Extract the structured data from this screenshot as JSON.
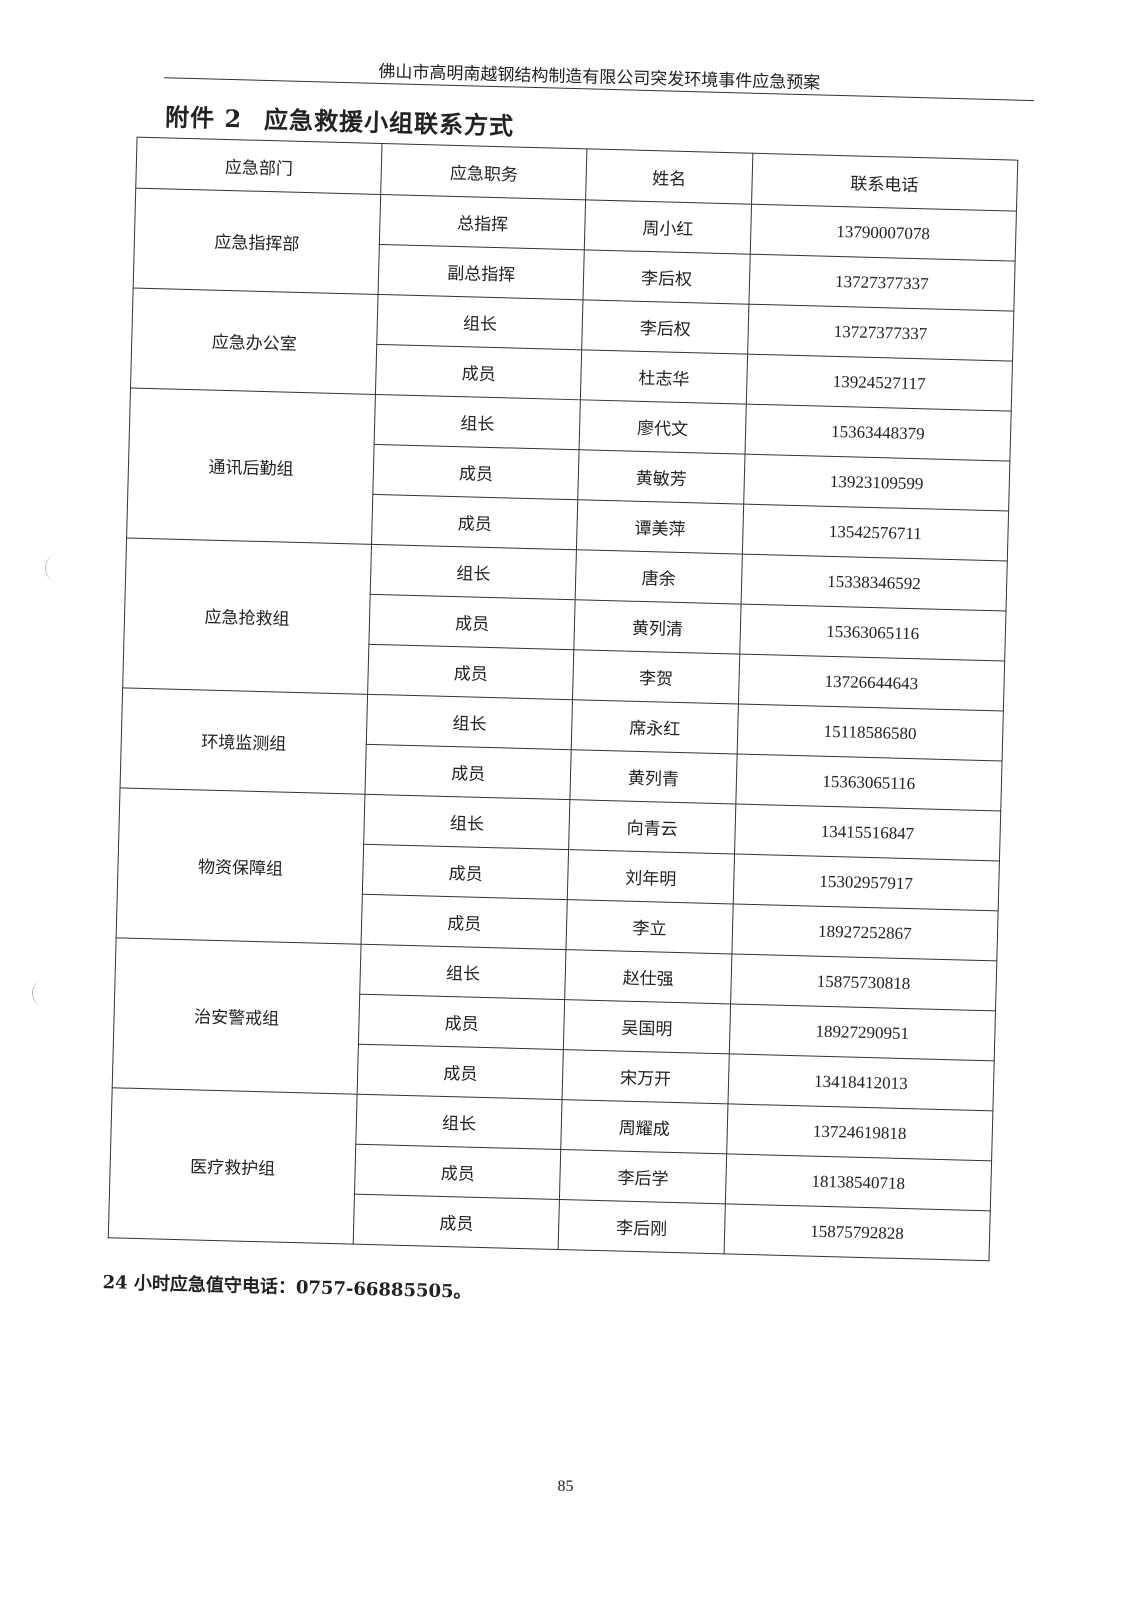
{
  "header": {
    "text": "佛山市高明南越钢结构制造有限公司突发环境事件应急预案"
  },
  "title": {
    "number": "附件 2",
    "text": "应急救援小组联系方式"
  },
  "table": {
    "columns": [
      "应急部门",
      "应急职务",
      "姓名",
      "联系电话"
    ],
    "groups": [
      {
        "dept": "应急指挥部",
        "rows": [
          {
            "role": "总指挥",
            "name": "周小红",
            "phone": "13790007078"
          },
          {
            "role": "副总指挥",
            "name": "李后权",
            "phone": "13727377337"
          }
        ]
      },
      {
        "dept": "应急办公室",
        "rows": [
          {
            "role": "组长",
            "name": "李后权",
            "phone": "13727377337"
          },
          {
            "role": "成员",
            "name": "杜志华",
            "phone": "13924527117"
          }
        ]
      },
      {
        "dept": "通讯后勤组",
        "rows": [
          {
            "role": "组长",
            "name": "廖代文",
            "phone": "15363448379"
          },
          {
            "role": "成员",
            "name": "黄敏芳",
            "phone": "13923109599"
          },
          {
            "role": "成员",
            "name": "谭美萍",
            "phone": "13542576711"
          }
        ]
      },
      {
        "dept": "应急抢救组",
        "rows": [
          {
            "role": "组长",
            "name": "唐余",
            "phone": "15338346592"
          },
          {
            "role": "成员",
            "name": "黄列清",
            "phone": "15363065116"
          },
          {
            "role": "成员",
            "name": "李贺",
            "phone": "13726644643"
          }
        ]
      },
      {
        "dept": "环境监测组",
        "rows": [
          {
            "role": "组长",
            "name": "席永红",
            "phone": "15118586580"
          },
          {
            "role": "成员",
            "name": "黄列青",
            "phone": "15363065116"
          }
        ]
      },
      {
        "dept": "物资保障组",
        "rows": [
          {
            "role": "组长",
            "name": "向青云",
            "phone": "13415516847"
          },
          {
            "role": "成员",
            "name": "刘年明",
            "phone": "15302957917"
          },
          {
            "role": "成员",
            "name": "李立",
            "phone": "18927252867"
          }
        ]
      },
      {
        "dept": "治安警戒组",
        "rows": [
          {
            "role": "组长",
            "name": "赵仕强",
            "phone": "15875730818"
          },
          {
            "role": "成员",
            "name": "吴国明",
            "phone": "18927290951"
          },
          {
            "role": "成员",
            "name": "宋万开",
            "phone": "13418412013"
          }
        ]
      },
      {
        "dept": "医疗救护组",
        "rows": [
          {
            "role": "组长",
            "name": "周耀成",
            "phone": "13724619818"
          },
          {
            "role": "成员",
            "name": "李后学",
            "phone": "18138540718"
          },
          {
            "role": "成员",
            "name": "李后刚",
            "phone": "15875792828"
          }
        ]
      }
    ]
  },
  "hotline": "24 小时应急值守电话：0757-66885505。",
  "page_number": "85"
}
